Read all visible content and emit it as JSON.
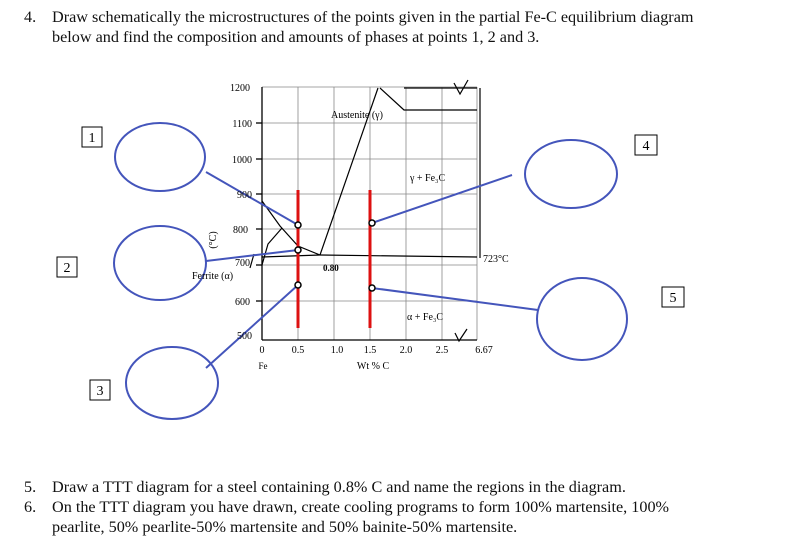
{
  "question4": {
    "number": "4.",
    "text": "Draw schematically the microstructures of the points given in the partial Fe-C equilibrium diagram below and find the composition and amounts of phases at points 1, 2 and 3."
  },
  "question5": {
    "number": "5.",
    "text": "Draw a TTT diagram for a steel containing 0.8% C and name the regions in the diagram."
  },
  "question6": {
    "number": "6.",
    "text": "On the TTT diagram you have drawn, create cooling programs to form 100% martensite, 100% pearlite, 50% pearlite-50% martensite and 50% bainite-50% martensite."
  },
  "diagram": {
    "y_ticks": [
      "1200",
      "1100",
      "1000",
      "900",
      "800",
      "700",
      "600",
      "500"
    ],
    "x_ticks": [
      "0",
      "0.5",
      "1.0",
      "1.5",
      "2.0",
      "2.5"
    ],
    "x_end_label": "6.67",
    "fe_label": "Fe",
    "x_axis_label": "Wt % C",
    "y_axis_label": "(°C)",
    "austenite_label": "Austenite (γ)",
    "gamma_fe3c_label": "γ + Fe₃C",
    "alpha_fe3c_label": "α + Fe₃C",
    "ferrite_label": "Ferrite (α)",
    "eutectoid_label": "0.80",
    "eutectoid_temp_label": "723°C",
    "check_mark": "√"
  },
  "point_labels": [
    "1",
    "2",
    "3",
    "4",
    "5"
  ]
}
